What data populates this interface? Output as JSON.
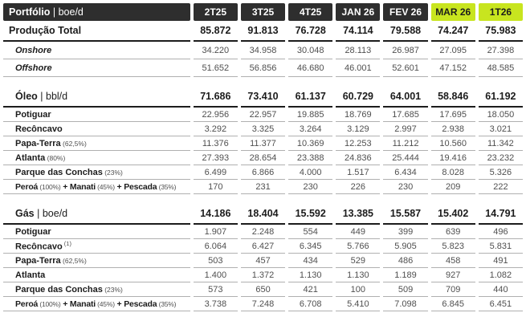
{
  "title": {
    "bold": "Portfólio",
    "unit": " | boe/d"
  },
  "colors": {
    "header_bg": "#2e2e2e",
    "highlight_bg": "#c8e51f",
    "rule_dark": "#1c1c1c",
    "rule_light": "#b0b0b0",
    "text_dark": "#1c1c1c",
    "text_gray": "#4f4f4f"
  },
  "chart_data": {
    "type": "table",
    "title": "Portfólio | boe/d",
    "columns": [
      "2T25",
      "3T25",
      "4T25",
      "JAN 26",
      "FEV 26",
      "MAR 26",
      "1T26"
    ],
    "highlighted_columns": [
      "MAR 26",
      "1T26"
    ],
    "rows": [
      {
        "name": "producao-total",
        "type": "total",
        "label": [
          [
            "b",
            "Produção Total"
          ]
        ],
        "values": [
          "85.872",
          "91.813",
          "76.728",
          "74.114",
          "79.588",
          "74.247",
          "75.983"
        ]
      },
      {
        "name": "onshore",
        "type": "italic",
        "label": [
          [
            "b",
            "Onshore"
          ]
        ],
        "values": [
          "34.220",
          "34.958",
          "30.048",
          "28.113",
          "26.987",
          "27.095",
          "27.398"
        ]
      },
      {
        "name": "offshore",
        "type": "italic",
        "label": [
          [
            "b",
            "Offshore"
          ]
        ],
        "values": [
          "51.652",
          "56.856",
          "46.680",
          "46.001",
          "52.601",
          "47.152",
          "48.585"
        ]
      },
      {
        "name": "gap-1",
        "type": "spacer",
        "label": [],
        "values": []
      },
      {
        "name": "oleo-total",
        "type": "total",
        "label": [
          [
            "b",
            "Óleo"
          ],
          [
            "u",
            " | bbl/d"
          ]
        ],
        "values": [
          "71.686",
          "73.410",
          "61.137",
          "60.729",
          "64.001",
          "58.846",
          "61.192"
        ]
      },
      {
        "name": "oleo-potiguar",
        "type": "data",
        "label": [
          [
            "b",
            "Potiguar"
          ]
        ],
        "values": [
          "22.956",
          "22.957",
          "19.885",
          "18.769",
          "17.685",
          "17.695",
          "18.050"
        ]
      },
      {
        "name": "oleo-reconcavo",
        "type": "data",
        "label": [
          [
            "b",
            "Recôncavo"
          ]
        ],
        "values": [
          "3.292",
          "3.325",
          "3.264",
          "3.129",
          "2.997",
          "2.938",
          "3.021"
        ]
      },
      {
        "name": "oleo-papa-terra",
        "type": "data",
        "label": [
          [
            "b",
            "Papa-Terra"
          ],
          [
            "s",
            " (62,5%)"
          ]
        ],
        "values": [
          "11.376",
          "11.377",
          "10.369",
          "12.253",
          "11.212",
          "10.560",
          "11.342"
        ]
      },
      {
        "name": "oleo-atlanta",
        "type": "data",
        "label": [
          [
            "b",
            "Atlanta"
          ],
          [
            "s",
            " (80%)"
          ]
        ],
        "values": [
          "27.393",
          "28.654",
          "23.388",
          "24.836",
          "25.444",
          "19.416",
          "23.232"
        ]
      },
      {
        "name": "oleo-parque-das-conchas",
        "type": "data",
        "label": [
          [
            "b",
            "Parque das Conchas"
          ],
          [
            "s",
            " (23%)"
          ]
        ],
        "values": [
          "6.499",
          "6.866",
          "4.000",
          "1.517",
          "6.434",
          "8.028",
          "5.326"
        ]
      },
      {
        "name": "oleo-peroa-manati-pescada",
        "type": "data",
        "label": [
          [
            "b",
            "Peroá"
          ],
          [
            "s",
            " (100%)"
          ],
          [
            "b",
            " + Manati"
          ],
          [
            "s",
            " (45%)"
          ],
          [
            "b",
            " + Pescada"
          ],
          [
            "s",
            " (35%)"
          ]
        ],
        "values": [
          "170",
          "231",
          "230",
          "226",
          "230",
          "209",
          "222"
        ]
      },
      {
        "name": "gap-2",
        "type": "spacer",
        "label": [],
        "values": []
      },
      {
        "name": "gas-total",
        "type": "total",
        "label": [
          [
            "b",
            "Gás"
          ],
          [
            "u",
            " | boe/d"
          ]
        ],
        "values": [
          "14.186",
          "18.404",
          "15.592",
          "13.385",
          "15.587",
          "15.402",
          "14.791"
        ]
      },
      {
        "name": "gas-potiguar",
        "type": "data",
        "label": [
          [
            "b",
            "Potiguar"
          ]
        ],
        "values": [
          "1.907",
          "2.248",
          "554",
          "449",
          "399",
          "639",
          "496"
        ]
      },
      {
        "name": "gas-reconcavo",
        "type": "data",
        "label": [
          [
            "b",
            "Recôncavo"
          ],
          [
            "sup",
            " (1)"
          ]
        ],
        "values": [
          "6.064",
          "6.427",
          "6.345",
          "5.766",
          "5.905",
          "5.823",
          "5.831"
        ]
      },
      {
        "name": "gas-papa-terra",
        "type": "data",
        "label": [
          [
            "b",
            "Papa-Terra"
          ],
          [
            "s",
            " (62,5%)"
          ]
        ],
        "values": [
          "503",
          "457",
          "434",
          "529",
          "486",
          "458",
          "491"
        ]
      },
      {
        "name": "gas-atlanta",
        "type": "data",
        "label": [
          [
            "b",
            "Atlanta"
          ]
        ],
        "values": [
          "1.400",
          "1.372",
          "1.130",
          "1.130",
          "1.189",
          "927",
          "1.082"
        ]
      },
      {
        "name": "gas-parque-das-conchas",
        "type": "data",
        "label": [
          [
            "b",
            "Parque das Conchas"
          ],
          [
            "s",
            " (23%)"
          ]
        ],
        "values": [
          "573",
          "650",
          "421",
          "100",
          "509",
          "709",
          "440"
        ]
      },
      {
        "name": "gas-peroa-manati-pescada",
        "type": "data",
        "label": [
          [
            "b",
            "Peroá"
          ],
          [
            "s",
            " (100%)"
          ],
          [
            "b",
            " + Manati"
          ],
          [
            "s",
            " (45%)"
          ],
          [
            "b",
            " + Pescada"
          ],
          [
            "s",
            " (35%)"
          ]
        ],
        "values": [
          "3.738",
          "7.248",
          "6.708",
          "5.410",
          "7.098",
          "6.845",
          "6.451"
        ]
      }
    ]
  }
}
